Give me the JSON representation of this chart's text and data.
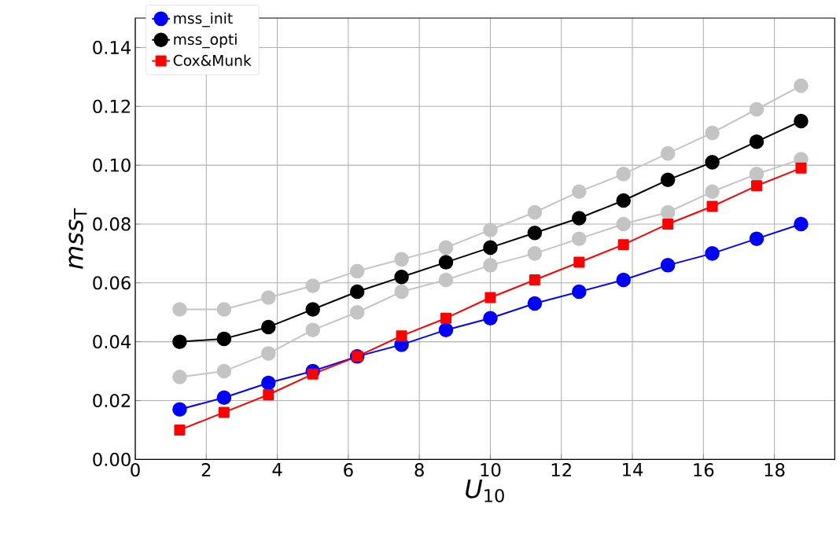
{
  "chart_data": {
    "type": "line",
    "xlabel": "*U*$_{10}$",
    "ylabel": "*mss*$_{T}$",
    "x": [
      1.25,
      2.5,
      3.75,
      5,
      6.25,
      7.5,
      8.75,
      10,
      11.25,
      12.5,
      13.75,
      15,
      16.25,
      17.5,
      18.75
    ],
    "series": [
      {
        "color": "#c4c4c4",
        "marker": "circle",
        "values": [
          0.051,
          0.051,
          0.055,
          0.059,
          0.064,
          0.068,
          0.072,
          0.078,
          0.084,
          0.091,
          0.097,
          0.104,
          0.111,
          0.119,
          0.127
        ]
      },
      {
        "color": "#c4c4c4",
        "marker": "circle",
        "values": [
          0.028,
          0.03,
          0.036,
          0.044,
          0.05,
          0.057,
          0.061,
          0.066,
          0.07,
          0.075,
          0.08,
          0.084,
          0.091,
          0.097,
          0.102
        ]
      },
      {
        "name": "mss_init",
        "color": "#0000ff",
        "marker": "circle",
        "values": [
          0.017,
          0.021,
          0.026,
          0.03,
          0.035,
          0.039,
          0.044,
          0.048,
          0.053,
          0.057,
          0.061,
          0.066,
          0.07,
          0.075,
          0.08
        ]
      },
      {
        "name": "mss_opti",
        "color": "#000000",
        "marker": "circle",
        "values": [
          0.04,
          0.041,
          0.045,
          0.051,
          0.057,
          0.062,
          0.067,
          0.072,
          0.077,
          0.082,
          0.088,
          0.095,
          0.101,
          0.108,
          0.115
        ]
      },
      {
        "name": "Cox&Munk",
        "color": "#ff0000",
        "marker": "square",
        "values": [
          0.01,
          0.016,
          0.022,
          0.029,
          0.035,
          0.042,
          0.048,
          0.055,
          0.061,
          0.067,
          0.073,
          0.08,
          0.086,
          0.093,
          0.099
        ]
      }
    ],
    "xlim": [
      0,
      19.7
    ],
    "ylim": [
      0,
      0.15
    ],
    "xticks": [
      0,
      2,
      4,
      6,
      8,
      10,
      12,
      14,
      16,
      18
    ],
    "yticks": [
      {
        "value": 0,
        "label": "0.00"
      },
      {
        "value": 0.02,
        "label": "0.02"
      },
      {
        "value": 0.04,
        "label": "0.04"
      },
      {
        "value": 0.06,
        "label": "0.06"
      },
      {
        "value": 0.08,
        "label": "0.08"
      },
      {
        "value": 0.1,
        "label": "0.10"
      },
      {
        "value": 0.12,
        "label": "0.12"
      },
      {
        "value": 0.14,
        "label": "0.14"
      }
    ],
    "grid": true,
    "legend": "top left",
    "line_style": "solid"
  }
}
